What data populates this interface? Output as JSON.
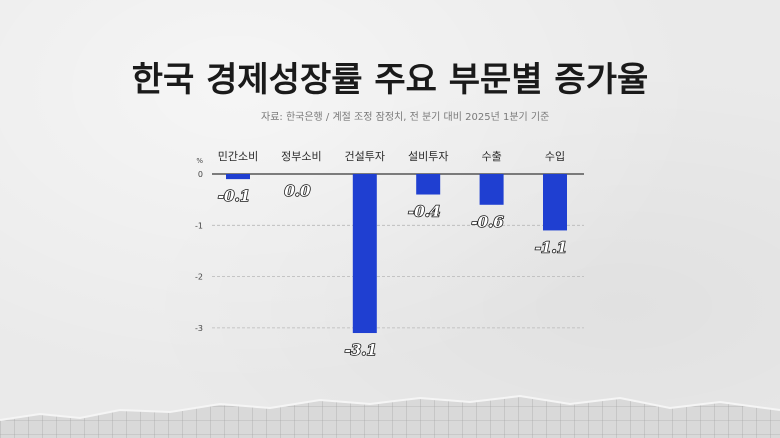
{
  "header": {
    "title": "한국 경제성장률 주요 부문별 증가율",
    "source": "자료: 한국은행 / 계절 조정 잠정치, 전 분기 대비 2025년 1분기 기준"
  },
  "colors": {
    "bar": "#1f3fd1",
    "grid": "#b8b8b8",
    "axis": "#555555"
  },
  "chart_data": {
    "type": "bar",
    "unit": "%",
    "categories": [
      "민간소비",
      "정부소비",
      "건설투자",
      "설비투자",
      "수출",
      "수입"
    ],
    "values": [
      -0.1,
      0.0,
      -3.1,
      -0.4,
      -0.6,
      -1.1
    ],
    "data_labels": [
      "-0.1",
      "0.0",
      "-3.1",
      "-0.4",
      "-0.6",
      "-1.1"
    ],
    "y_ticks": [
      "0",
      "-1",
      "-2",
      "-3"
    ],
    "ylim": [
      -3.2,
      0
    ],
    "grid": true,
    "xlabel": "",
    "ylabel": ""
  }
}
